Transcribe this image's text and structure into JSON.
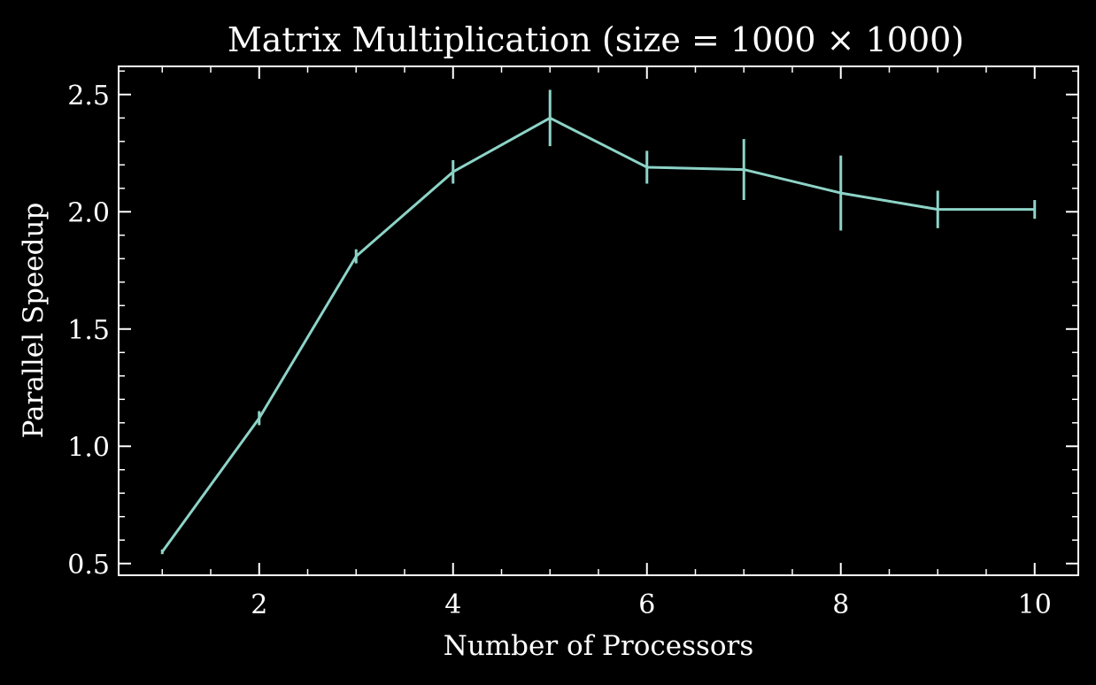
{
  "chart_data": {
    "type": "line",
    "title": "Matrix Multiplication (size = 1000 × 1000)",
    "xlabel": "Number of Processors",
    "ylabel": "Parallel Speedup",
    "xlim": [
      0.55,
      10.45
    ],
    "ylim": [
      0.45,
      2.62
    ],
    "xticks": [
      2,
      4,
      6,
      8,
      10
    ],
    "xtick_labels": [
      "2",
      "4",
      "6",
      "8",
      "10"
    ],
    "yticks": [
      0.5,
      1.0,
      1.5,
      2.0,
      2.5
    ],
    "ytick_labels": [
      "0.5",
      "1.0",
      "1.5",
      "2.0",
      "2.5"
    ],
    "x_minor_step": 0.5,
    "y_minor_step": 0.1,
    "grid": false,
    "error_bars": true,
    "series": [
      {
        "x": [
          1,
          2,
          3,
          4,
          5,
          6,
          7,
          8,
          9,
          10
        ],
        "y": [
          0.55,
          1.12,
          1.81,
          2.17,
          2.4,
          2.19,
          2.18,
          2.08,
          2.01,
          2.01
        ],
        "yerr": [
          0.01,
          0.03,
          0.03,
          0.05,
          0.12,
          0.07,
          0.13,
          0.16,
          0.08,
          0.04
        ],
        "color": "#8dd3c7"
      }
    ]
  },
  "colors": {
    "background": "#000000",
    "axes": "#ffffff",
    "line": "#8dd3c7"
  }
}
